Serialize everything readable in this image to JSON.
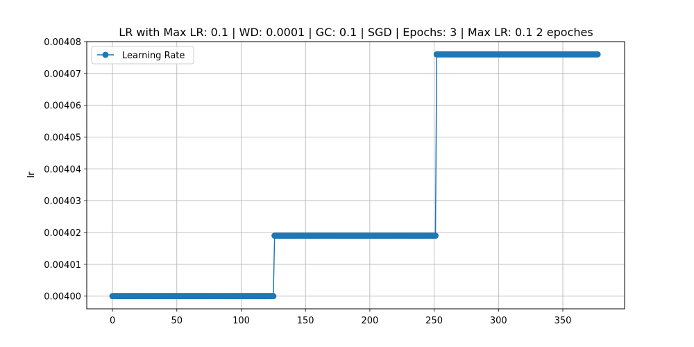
{
  "chart_data": {
    "type": "line",
    "title": "LR with Max LR: 0.1 | WD: 0.0001 | GC: 0.1 | SGD | Epochs: 3 | Max LR: 0.1 2 epoches",
    "xlabel": "",
    "ylabel": "lr",
    "xlim": [
      -20,
      398
    ],
    "ylim": [
      0.003996,
      0.00408
    ],
    "grid": true,
    "legend_position": "top-left",
    "x_ticks": [
      0,
      50,
      100,
      150,
      200,
      250,
      300,
      350
    ],
    "x_tick_labels": [
      "0",
      "50",
      "100",
      "150",
      "200",
      "250",
      "300",
      "350"
    ],
    "y_ticks": [
      0.004,
      0.00401,
      0.00402,
      0.00403,
      0.00404,
      0.00405,
      0.00406,
      0.00407,
      0.00408
    ],
    "y_tick_labels": [
      "0.00400",
      "0.00401",
      "0.00402",
      "0.00403",
      "0.00404",
      "0.00405",
      "0.00406",
      "0.00407",
      "0.00408"
    ],
    "series": [
      {
        "name": "Learning Rate",
        "color": "#1f77b4",
        "marker": "circle",
        "segments": [
          {
            "x_start": 0,
            "x_end": 125,
            "value": 0.004
          },
          {
            "x_start": 126,
            "x_end": 251,
            "value": 0.004019
          },
          {
            "x_start": 252,
            "x_end": 377,
            "value": 0.004076
          }
        ]
      }
    ]
  }
}
